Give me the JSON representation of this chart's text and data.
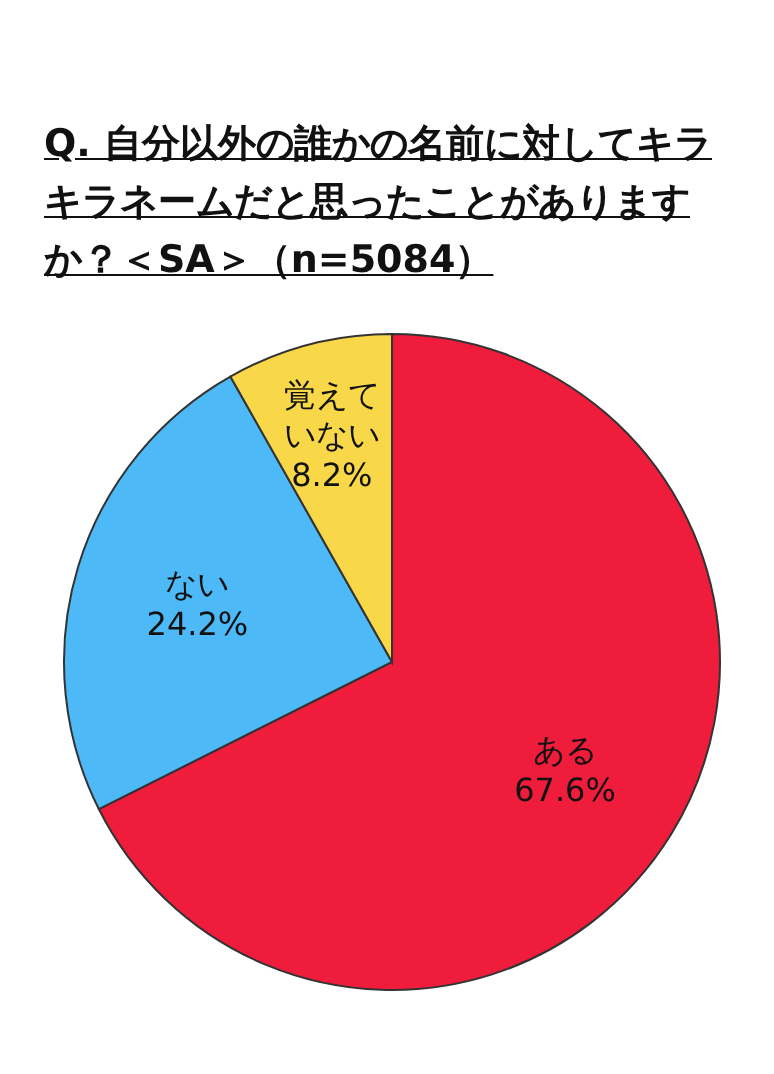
{
  "chart_data": {
    "type": "pie",
    "title": "Q. 自分以外の誰かの名前に対してキラキラネームだと思ったことがありますか？＜SA＞（n=5084）",
    "categories": [
      "ある",
      "ない",
      "覚えていない"
    ],
    "values": [
      67.6,
      24.2,
      8.2
    ],
    "colors": [
      "#f01c3c",
      "#4db9f6",
      "#f8d848"
    ],
    "value_labels": [
      "67.6%",
      "24.2%",
      "8.2%"
    ]
  }
}
